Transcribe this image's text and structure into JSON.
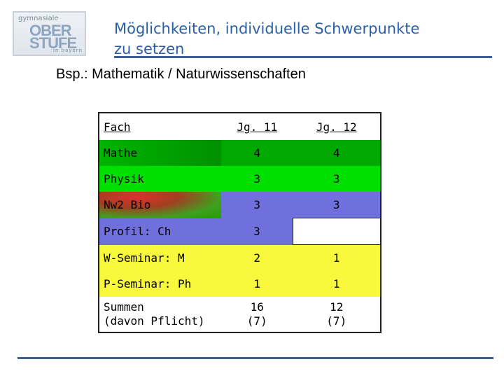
{
  "logo": {
    "top": "gymnasiale",
    "line1": "OBER",
    "line2": "STUFE",
    "bottom": "in bayern"
  },
  "header": {
    "title_line1": "Möglichkeiten, individuelle Schwerpunkte",
    "title_line2": "zu setzen"
  },
  "subtitle": "Bsp.: Mathematik / Naturwissenschaften",
  "table": {
    "columns": [
      "Fach",
      "Jg. 11",
      "Jg. 12"
    ],
    "rows": [
      {
        "fach": "Mathe",
        "jg11": "4",
        "jg12": "4"
      },
      {
        "fach": "Physik",
        "jg11": "3",
        "jg12": "3"
      },
      {
        "fach": "Nw2 Bio",
        "jg11": "3",
        "jg12": "3"
      },
      {
        "fach": "Profil: Ch",
        "jg11": "3",
        "jg12": ""
      },
      {
        "fach": "W-Seminar: M",
        "jg11": "2",
        "jg12": "1"
      },
      {
        "fach": "P-Seminar: Ph",
        "jg11": "1",
        "jg12": "1"
      },
      {
        "fach_line1": "Summen",
        "fach_line2": "(davon Pflicht)",
        "jg11_line1": "16",
        "jg11_line2": "(7)",
        "jg12_line1": "12",
        "jg12_line2": "(7)"
      }
    ]
  },
  "colors": {
    "mathe_green": "#00a800",
    "physik_green": "#00e000",
    "lilac": "#7070dd",
    "yellow": "#f8f83c",
    "title_blue": "#2a5fa8",
    "rule_blue": "#3d5f96"
  }
}
